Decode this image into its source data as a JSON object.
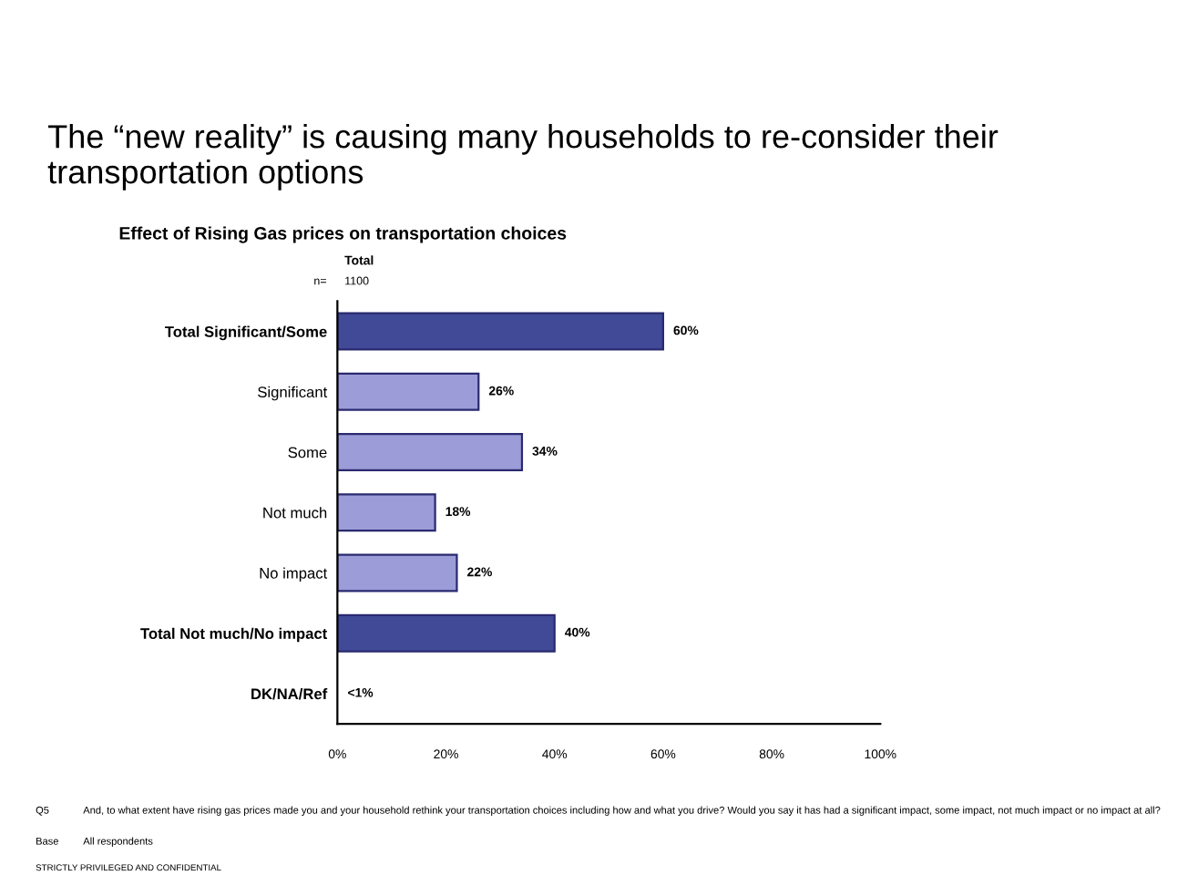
{
  "chart_data": {
    "type": "bar",
    "orientation": "horizontal",
    "title": "The “new reality” is causing many households to re-consider their transportation options",
    "subtitle": "Effect of Rising Gas prices on transportation choices",
    "categories": [
      "Total Significant/Some",
      "Significant",
      "Some",
      "Not much",
      "No impact",
      "Total Not much/No impact",
      "DK/NA/Ref"
    ],
    "values": [
      60,
      26,
      34,
      18,
      22,
      40,
      null
    ],
    "colors": [
      "#404a96",
      "#9c9cd8",
      "#9c9cd8",
      "#9c9cd8",
      "#9c9cd8",
      "#404a96",
      null
    ],
    "value_labels": [
      "60%",
      "26%",
      "34%",
      "18%",
      "22%",
      "40%",
      "<1%"
    ],
    "xlim": [
      0,
      100
    ],
    "xticks": [
      {
        "value": 0,
        "label": "0%"
      },
      {
        "value": 20,
        "label": "20%"
      },
      {
        "value": 40,
        "label": "40%"
      },
      {
        "value": 60,
        "label": "60%"
      },
      {
        "value": 80,
        "label": "80%"
      },
      {
        "value": 100,
        "label": "100%"
      }
    ],
    "grid": false,
    "legend": false,
    "annotations": [
      "Total",
      "n=",
      "1100",
      "Q5",
      "And, to what extent have rising gas prices made you and your household rethink your transportation choices including how and what you drive? Would you say it has had a significant impact, some impact, not much impact or no impact at all?",
      "Base",
      "All respondents",
      "STRICTLY PRIVILEGED AND CONFIDENTIAL"
    ]
  }
}
